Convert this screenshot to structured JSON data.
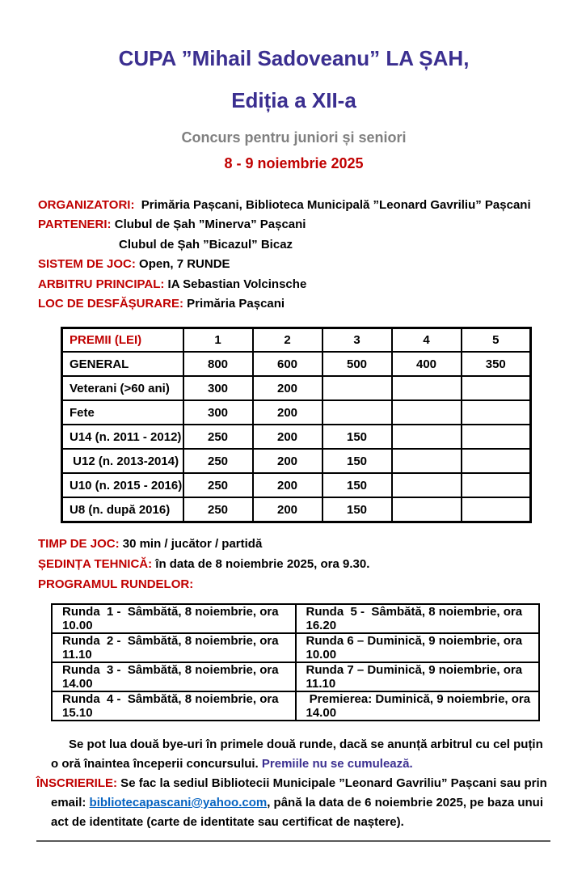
{
  "header": {
    "title_line1": "CUPA ”Mihail Sadoveanu” LA ȘAH,",
    "title_line2": "Ediția a XII-a",
    "subtitle": "Concurs pentru juniori și seniori",
    "date_range": "8 - 9 noiembrie 2025"
  },
  "info": [
    {
      "label": "ORGANIZATORI:",
      "value": "  Primăria Pașcani, Biblioteca Municipală ”Leonard Gavriliu” Pașcani"
    },
    {
      "label": "PARTENERI:",
      "value": " Clubul de Șah ”Minerva” Pașcani"
    },
    {
      "label": "",
      "value": "Clubul de Șah ”Bicazul” Bicaz"
    },
    {
      "label": "SISTEM DE JOC:",
      "value": " Open, 7 RUNDE"
    },
    {
      "label": "ARBITRU PRINCIPAL:",
      "value": " IA Sebastian Volcinsche"
    },
    {
      "label": "LOC DE DESFĂȘURARE:",
      "value": " Primăria Pașcani"
    }
  ],
  "prizes_table": {
    "header": [
      "PREMII (LEI)",
      "1",
      "2",
      "3",
      "4",
      "5"
    ],
    "rows": [
      [
        "GENERAL",
        "800",
        "600",
        "500",
        "400",
        "350"
      ],
      [
        "Veterani (>60 ani)",
        "300",
        "200",
        "",
        "",
        ""
      ],
      [
        "Fete",
        "300",
        "200",
        "",
        "",
        ""
      ],
      [
        "U14 (n. 2011 - 2012)",
        "250",
        "200",
        "150",
        "",
        ""
      ],
      [
        " U12 (n. 2013-2014)",
        "250",
        "200",
        "150",
        "",
        ""
      ],
      [
        "U10 (n. 2015 - 2016)",
        "250",
        "200",
        "150",
        "",
        ""
      ],
      [
        "U8 (n. după 2016)",
        "250",
        "200",
        "150",
        "",
        ""
      ]
    ]
  },
  "time_info": [
    {
      "label": "TIMP DE JOC:",
      "value": " 30 min / jucător / partidă"
    },
    {
      "label": "ȘEDINȚA TEHNICĂ:",
      "value": " în data de 8 noiembrie 2025, ora 9.30."
    },
    {
      "label": "PROGRAMUL RUNDELOR:",
      "value": ""
    }
  ],
  "rounds_table": {
    "rows": [
      [
        "Runda  1 -  Sâmbătă, 8 noiembrie, ora 10.00",
        "Runda  5 -  Sâmbătă, 8 noiembrie, ora 16.20"
      ],
      [
        "Runda  2 -  Sâmbătă, 8 noiembrie, ora 11.10",
        "Runda 6 – Duminică, 9 noiembrie, ora 10.00"
      ],
      [
        "Runda  3 -  Sâmbătă, 8 noiembrie, ora 14.00",
        "Runda 7 – Duminică, 9 noiembrie, ora 11.10"
      ],
      [
        "Runda  4 -  Sâmbătă, 8 noiembrie, ora 15.10",
        " Premierea: Duminică, 9 noiembrie, ora 14.00"
      ]
    ]
  },
  "notes": {
    "bye_text": "Se pot lua două bye-uri în primele două runde, dacă se anunță arbitrul cu cel puțin o oră înaintea începerii concursului. ",
    "bye_highlight": "Premiile nu se cumulează.",
    "inscrieri_label": "ÎNSCRIERILE:",
    "inscrieri_pre": " Se fac la sediul Bibliotecii Municipale ”Leonard Gavriliu” Pașcani sau prin email: ",
    "email": "bibliotecapascani@yahoo.com",
    "inscrieri_post": ", până la data de 6 noiembrie 2025, pe baza unui act de identitate (carte de identitate sau certificat de naștere)."
  },
  "colors": {
    "title_purple": "#3b2f90",
    "heading_red": "#c00000",
    "subtitle_gray": "#808080",
    "link_blue": "#0563c1"
  }
}
